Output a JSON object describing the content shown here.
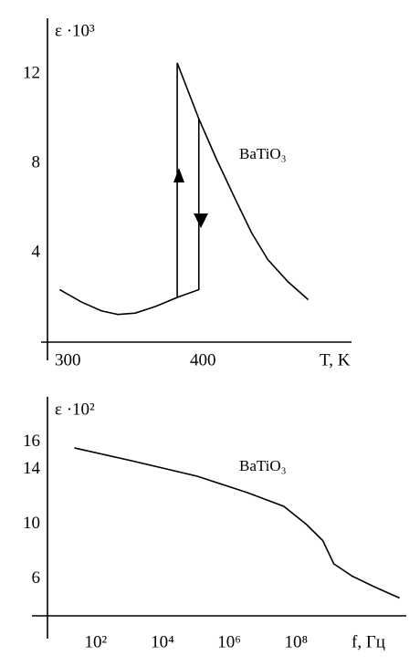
{
  "chart_data": [
    {
      "type": "line",
      "ylabel": "ε ·10³",
      "xlabel": "T, K",
      "annotation": "BaTiO₃",
      "xlim": [
        285,
        510
      ],
      "xticks": [
        300,
        400
      ],
      "ylim": [
        0,
        14.5
      ],
      "yticks": [
        4,
        8,
        12
      ],
      "series": [
        {
          "color": "#000000",
          "x": [
            294,
            310,
            325,
            337,
            350,
            365,
            381,
            381,
            397,
            410,
            424,
            436,
            448,
            463,
            478
          ],
          "values": [
            2.35,
            1.8,
            1.4,
            1.24,
            1.3,
            1.6,
            2.0,
            12.5,
            10.0,
            8.2,
            6.4,
            4.9,
            3.7,
            2.7,
            1.9
          ]
        },
        {
          "color": "#000000",
          "x": [
            381,
            397,
            397
          ],
          "values": [
            2.0,
            2.35,
            10.0
          ]
        }
      ]
    },
    {
      "type": "line",
      "ylabel": "ε ·10²",
      "xlabel": "f, Гц",
      "annotation": "BaTiO₃",
      "xlog": true,
      "xlim": [
        3.6,
        200000000000
      ],
      "xticks": [
        {
          "value": 100,
          "label": "10²"
        },
        {
          "value": 10000,
          "label": "10⁴"
        },
        {
          "value": 1000000,
          "label": "10⁶"
        },
        {
          "value": 100000000,
          "label": "10⁸"
        }
      ],
      "ylim": [
        3.3,
        19.3
      ],
      "yticks": [
        6,
        10,
        14,
        16
      ],
      "series": [
        {
          "color": "#000000",
          "x": [
            23,
            1350,
            110000,
            3500000,
            43000000,
            200000000,
            630000000,
            1350000000,
            4800000000,
            23000000000,
            126000000000
          ],
          "values": [
            15.57,
            14.6,
            13.5,
            12.3,
            11.3,
            10.0,
            8.8,
            7.1,
            6.2,
            5.4,
            4.6
          ]
        }
      ]
    }
  ]
}
